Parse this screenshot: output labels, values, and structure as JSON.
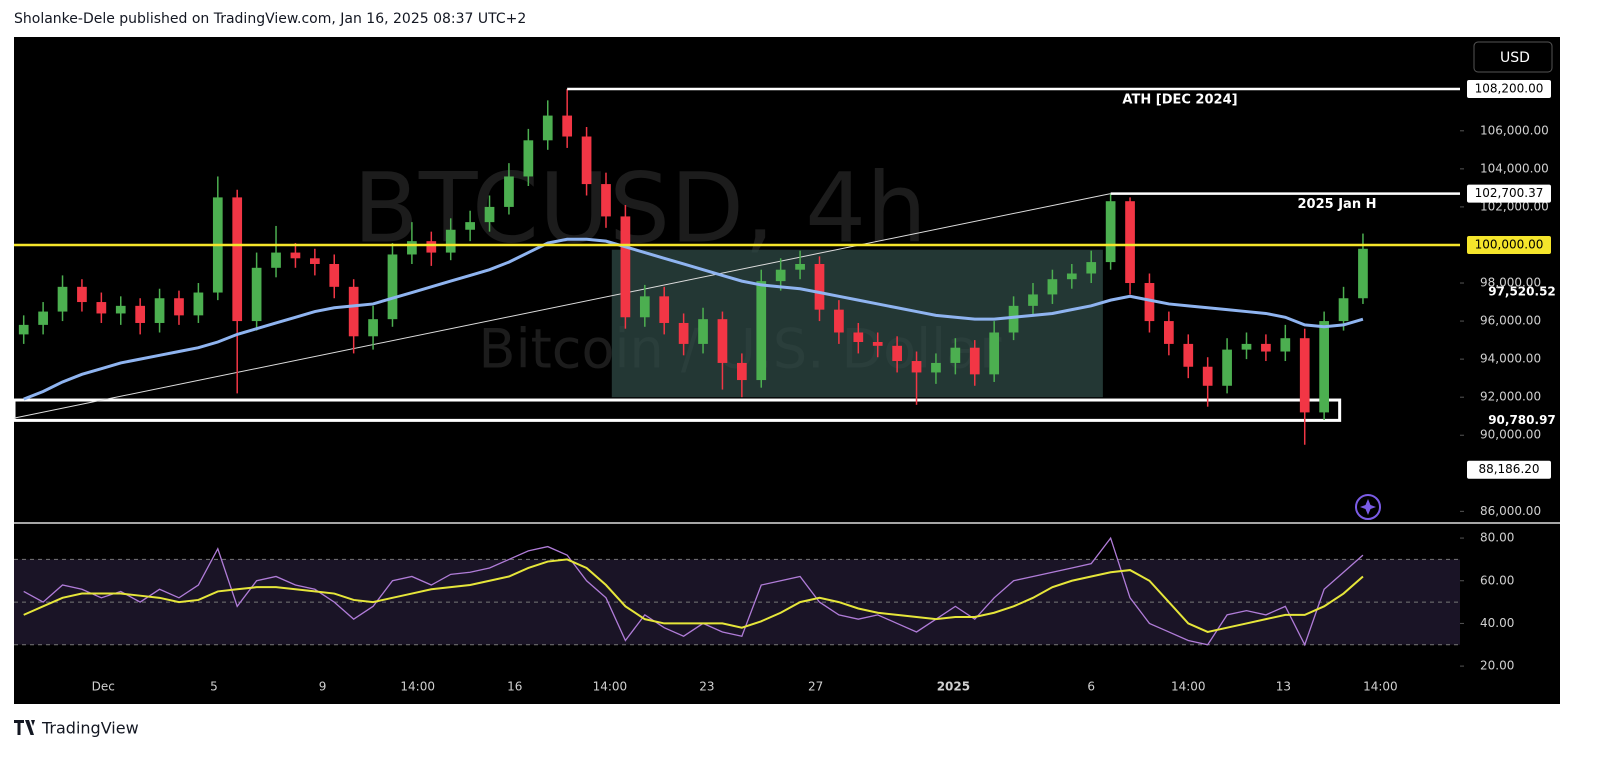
{
  "header": {
    "byline": "Sholanke-Dele published on TradingView.com, Jan 16, 2025 08:37 UTC+2",
    "brand": "TradingView",
    "currency": "USD"
  },
  "chart_data": [
    {
      "type": "candlestick",
      "symbol": "BTCUSD, 4h",
      "description": "Bitcoin / U.S. Dollar",
      "up_color": "#4caf50",
      "down_color": "#f23645",
      "grid": false,
      "open": [
        95300,
        95800,
        96500,
        97800,
        97000,
        96400,
        96800,
        95900,
        97200,
        96300,
        97500,
        102500,
        96000,
        98800,
        99600,
        99300,
        99000,
        97800,
        95200,
        96100,
        99500,
        100200,
        99600,
        100800,
        101200,
        102000,
        103600,
        105500,
        106800,
        105700,
        103200,
        101500,
        96200,
        97300,
        95900,
        94800,
        96100,
        93800,
        92900,
        98100,
        98700,
        99000,
        96600,
        95400,
        94900,
        94700,
        93900,
        93300,
        93800,
        94600,
        93200,
        95400,
        96800,
        97400,
        98200,
        98500,
        99100,
        102300,
        98000,
        96000,
        94800,
        93600,
        92600,
        94500,
        94800,
        94400,
        95100,
        91200,
        96000,
        97200
      ],
      "high": [
        96300,
        97000,
        98400,
        98200,
        97500,
        97300,
        97200,
        97700,
        97600,
        98000,
        103600,
        102900,
        99600,
        101000,
        100100,
        99800,
        99500,
        98200,
        96800,
        100100,
        101200,
        100700,
        101400,
        101800,
        102600,
        104300,
        106100,
        107600,
        108200,
        106200,
        103800,
        102100,
        97900,
        97800,
        96400,
        96700,
        96500,
        94300,
        98700,
        99300,
        99700,
        99400,
        97100,
        95900,
        95400,
        95200,
        94400,
        94300,
        95100,
        95000,
        96000,
        97300,
        98000,
        98700,
        99000,
        99700,
        102700,
        102500,
        98500,
        96500,
        95300,
        94100,
        95100,
        95400,
        95300,
        95800,
        95600,
        96500,
        97800,
        100600
      ],
      "low": [
        94800,
        95300,
        96000,
        96500,
        95900,
        95800,
        95300,
        95400,
        95800,
        95900,
        97100,
        92200,
        95500,
        98300,
        98800,
        98400,
        97200,
        94300,
        94500,
        95700,
        99000,
        98900,
        99200,
        100200,
        100700,
        101600,
        103100,
        105000,
        105100,
        102600,
        100900,
        95600,
        95700,
        95300,
        94200,
        94300,
        92400,
        92000,
        92500,
        97600,
        98200,
        96000,
        94800,
        94300,
        94100,
        93300,
        91600,
        92700,
        93200,
        92600,
        92800,
        95000,
        96300,
        96900,
        97700,
        98000,
        98700,
        97400,
        95400,
        94200,
        93000,
        91500,
        92200,
        94000,
        93900,
        93900,
        89500,
        90800,
        95500,
        96900
      ],
      "close": [
        95800,
        96500,
        97800,
        97000,
        96400,
        96800,
        95900,
        97200,
        96300,
        97500,
        102500,
        96000,
        98800,
        99600,
        99300,
        99000,
        97800,
        95200,
        96100,
        99500,
        100200,
        99600,
        100800,
        101200,
        102000,
        103600,
        105500,
        106800,
        105700,
        103200,
        101500,
        96200,
        97300,
        95900,
        94800,
        96100,
        93800,
        92900,
        98100,
        98700,
        99000,
        96600,
        95400,
        94900,
        94700,
        93900,
        93300,
        93800,
        94600,
        93200,
        95400,
        96800,
        97400,
        98200,
        98500,
        99100,
        102300,
        98000,
        96000,
        94800,
        93600,
        92600,
        94500,
        94800,
        94400,
        95100,
        91200,
        96000,
        97200,
        99800
      ],
      "ma": {
        "color": "#8fb4f0",
        "values": [
          91900,
          92300,
          92800,
          93200,
          93500,
          93800,
          94000,
          94200,
          94400,
          94600,
          94900,
          95300,
          95600,
          95900,
          96200,
          96500,
          96700,
          96800,
          96900,
          97200,
          97500,
          97800,
          98100,
          98400,
          98700,
          99100,
          99600,
          100100,
          100300,
          100300,
          100200,
          99900,
          99600,
          99300,
          99000,
          98700,
          98400,
          98100,
          97900,
          97800,
          97700,
          97500,
          97300,
          97100,
          96900,
          96700,
          96500,
          96300,
          96200,
          96100,
          96100,
          96200,
          96300,
          96400,
          96600,
          96800,
          97100,
          97300,
          97100,
          96900,
          96800,
          96700,
          96600,
          96500,
          96400,
          96200,
          95800,
          95700,
          95800,
          96100
        ]
      },
      "levels": [
        {
          "value": 108200,
          "label": "108,200.00",
          "text": "ATH [DEC 2024]",
          "color": "#ffffff"
        },
        {
          "value": 102700.37,
          "label": "102,700.37",
          "text": "2025 Jan H",
          "color": "#ffffff"
        },
        {
          "value": 100000,
          "label": "100,000.00",
          "color": "#f5e52b"
        }
      ],
      "price_labels": [
        {
          "value": 97520.52,
          "label": "97,520.52",
          "boxed": false
        },
        {
          "value": 90780.97,
          "label": "90,780.97",
          "boxed": false
        },
        {
          "value": 88186.2,
          "label": "88,186.20",
          "boxed": true
        }
      ],
      "zones": [
        {
          "y": [
            92000,
            99750
          ],
          "x": [
            30.3,
            55.6
          ],
          "color": "#2f4a45"
        },
        {
          "y": [
            90780.97,
            91850
          ],
          "x": [
            -0.5,
            67.8
          ],
          "color": "none"
        }
      ],
      "trendline": {
        "x": [
          -0.5,
          56
        ],
        "y": [
          90900,
          102700.37
        ]
      },
      "xlim": [
        -0.5,
        74
      ],
      "ylim": [
        85440,
        110930
      ],
      "yticks": [
        {
          "value": 86000,
          "label": "86,000.00"
        },
        {
          "value": 90000,
          "label": "90,000.00"
        },
        {
          "value": 92000,
          "label": "92,000.00"
        },
        {
          "value": 94000,
          "label": "94,000.00"
        },
        {
          "value": 96000,
          "label": "96,000.00"
        },
        {
          "value": 98000,
          "label": "98,000.00"
        },
        {
          "value": 102000,
          "label": "102,000.00"
        },
        {
          "value": 104000,
          "label": "104,000.00"
        },
        {
          "value": 106000,
          "label": "106,000.00"
        }
      ],
      "xticks": [
        {
          "value": 4.1,
          "label": "Dec"
        },
        {
          "value": 9.8,
          "label": "5"
        },
        {
          "value": 15.4,
          "label": "9"
        },
        {
          "value": 20.3,
          "label": "14:00"
        },
        {
          "value": 25.3,
          "label": "16"
        },
        {
          "value": 30.2,
          "label": "14:00"
        },
        {
          "value": 35.2,
          "label": "23"
        },
        {
          "value": 40.8,
          "label": "27"
        },
        {
          "value": 47.9,
          "label": "2025"
        },
        {
          "value": 55,
          "label": "6"
        },
        {
          "value": 60,
          "label": "14:00"
        },
        {
          "value": 64.9,
          "label": "13"
        },
        {
          "value": 69.9,
          "label": "14:00"
        }
      ]
    },
    {
      "type": "line",
      "xlim": [
        -0.5,
        74
      ],
      "ylim": [
        2.7,
        86.6
      ],
      "yticks": [
        {
          "value": 20,
          "label": "20.00"
        },
        {
          "value": 40,
          "label": "40.00"
        },
        {
          "value": 60,
          "label": "60.00"
        },
        {
          "value": 80,
          "label": "80.00"
        }
      ],
      "band": [
        30,
        70
      ],
      "guides": [
        30,
        50,
        70
      ],
      "series": [
        {
          "color": "#b07cd8",
          "values": [
            55,
            50,
            58,
            56,
            52,
            55,
            50,
            56,
            52,
            58,
            75,
            48,
            60,
            62,
            58,
            56,
            50,
            42,
            48,
            60,
            62,
            58,
            63,
            64,
            66,
            70,
            74,
            76,
            72,
            60,
            52,
            32,
            44,
            38,
            34,
            40,
            36,
            34,
            58,
            60,
            62,
            50,
            44,
            42,
            44,
            40,
            36,
            42,
            48,
            42,
            52,
            60,
            62,
            64,
            66,
            68,
            80,
            52,
            40,
            36,
            32,
            30,
            44,
            46,
            44,
            48,
            30,
            56,
            64,
            72
          ]
        },
        {
          "color": "#e6e63a",
          "values": [
            44,
            48,
            52,
            54,
            54,
            54,
            53,
            52,
            50,
            51,
            55,
            56,
            57,
            57,
            56,
            55,
            54,
            51,
            50,
            52,
            54,
            56,
            57,
            58,
            60,
            62,
            66,
            69,
            70,
            66,
            58,
            48,
            42,
            40,
            40,
            40,
            40,
            38,
            41,
            45,
            50,
            52,
            50,
            47,
            45,
            44,
            43,
            42,
            43,
            43,
            45,
            48,
            52,
            57,
            60,
            62,
            64,
            65,
            60,
            50,
            40,
            36,
            38,
            40,
            42,
            44,
            44,
            48,
            54,
            62
          ]
        }
      ]
    }
  ]
}
